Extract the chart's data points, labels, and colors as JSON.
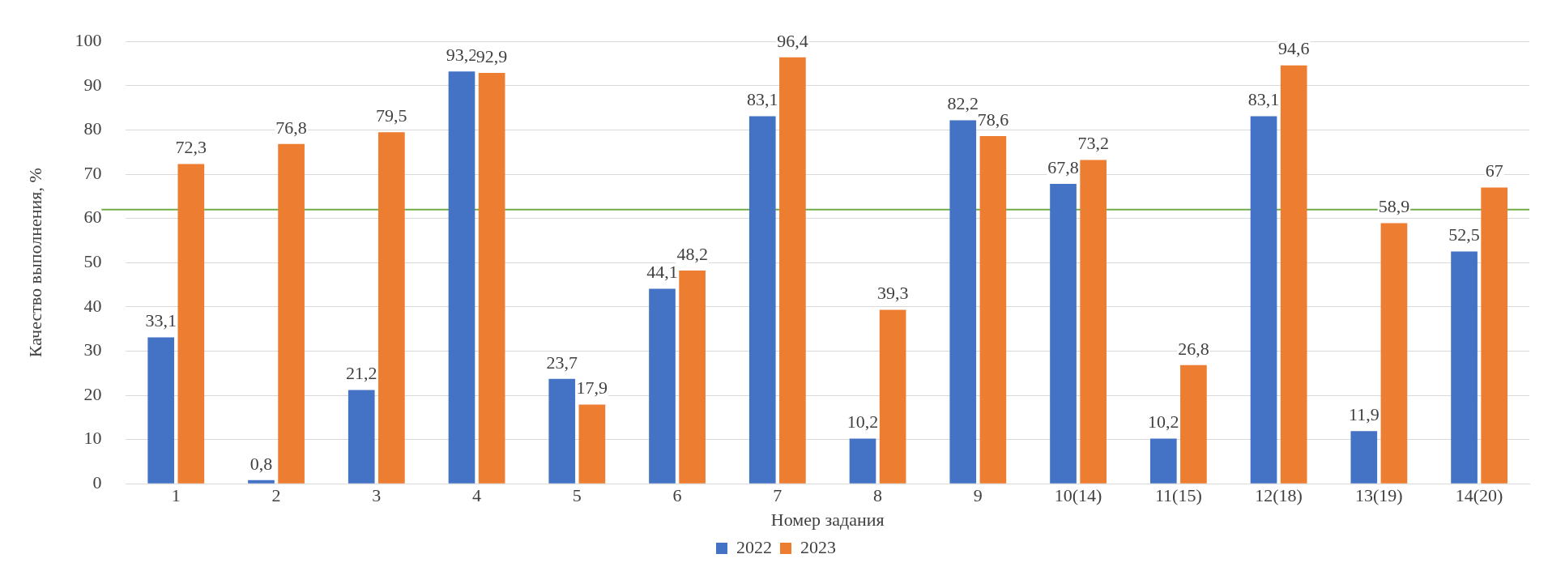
{
  "chart_data": {
    "type": "bar",
    "xlabel": "Номер задания",
    "ylabel": "Качество выполнения, %",
    "categories": [
      "1",
      "2",
      "3",
      "4",
      "5",
      "6",
      "7",
      "8",
      "9",
      "10(14)",
      "11(15)",
      "12(18)",
      "13(19)",
      "14(20)"
    ],
    "series": [
      {
        "name": "2022",
        "color": "#4472c4",
        "values": [
          33.1,
          0.8,
          21.2,
          93.2,
          23.7,
          44.1,
          83.1,
          10.2,
          82.2,
          67.8,
          10.2,
          83.1,
          11.9,
          52.5
        ],
        "value_labels": [
          "33,1",
          "0,8",
          "21,2",
          "93,2",
          "23,7",
          "44,1",
          "83,1",
          "10,2",
          "82,2",
          "67,8",
          "10,2",
          "83,1",
          "11,9",
          "52,5"
        ]
      },
      {
        "name": "2023",
        "color": "#ed7d31",
        "values": [
          72.3,
          76.8,
          79.5,
          92.9,
          17.9,
          48.2,
          96.4,
          39.3,
          78.6,
          73.2,
          26.8,
          94.6,
          58.9,
          67
        ],
        "value_labels": [
          "72,3",
          "76,8",
          "79,5",
          "92,9",
          "17,9",
          "48,2",
          "96,4",
          "39,3",
          "78,6",
          "73,2",
          "26,8",
          "94,6",
          "58,9",
          "67"
        ]
      }
    ],
    "ylim": [
      0,
      100
    ],
    "yticks": [
      0,
      10,
      20,
      30,
      40,
      50,
      60,
      70,
      80,
      90,
      100
    ],
    "grid": "y",
    "legend": "bottom",
    "ref_lines": [
      {
        "axis": "y",
        "value": 62,
        "color": "#70ad47"
      }
    ]
  }
}
